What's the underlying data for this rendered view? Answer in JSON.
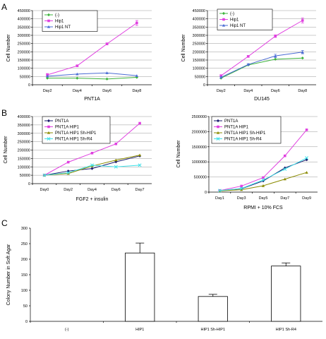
{
  "panels": [
    "A",
    "B",
    "C"
  ],
  "chart_data": [
    {
      "type": "line",
      "ylabel": "Cell Number",
      "xlabel": "PNT1A",
      "categories": [
        "Day2",
        "Day4",
        "Day6",
        "Day8"
      ],
      "ylim": [
        0,
        450000
      ],
      "yticks": [
        "0",
        "50000",
        "100000",
        "150000",
        "200000",
        "250000",
        "300000",
        "350000",
        "400000",
        "450000"
      ],
      "grid": true,
      "legend": "top-left",
      "series": [
        {
          "name": "(-)",
          "color": "#3cb43c",
          "marker": "diamond",
          "values": [
            40000,
            40000,
            35000,
            45000
          ]
        },
        {
          "name": "Hip1",
          "color": "#e040e0",
          "marker": "square",
          "values": [
            60000,
            115000,
            248000,
            375000
          ],
          "err": [
            8000,
            4000,
            6000,
            15000
          ]
        },
        {
          "name": "Hip1 NT",
          "color": "#4a6cd4",
          "marker": "triangle",
          "values": [
            52000,
            65000,
            72000,
            55000
          ]
        }
      ]
    },
    {
      "type": "line",
      "ylabel": "Cell Number",
      "xlabel": "DU145",
      "categories": [
        "Day2",
        "Day4",
        "Day6",
        "Day8"
      ],
      "ylim": [
        0,
        450000
      ],
      "yticks": [
        "0",
        "50000",
        "100000",
        "150000",
        "200000",
        "250000",
        "300000",
        "350000",
        "400000",
        "450000"
      ],
      "grid": true,
      "legend": "top-left",
      "series": [
        {
          "name": "(-)",
          "color": "#3cb43c",
          "marker": "diamond",
          "values": [
            40000,
            120000,
            155000,
            162000
          ]
        },
        {
          "name": "Hip1",
          "color": "#e040e0",
          "marker": "square",
          "values": [
            55000,
            172000,
            295000,
            390000
          ],
          "err": [
            5000,
            5000,
            8000,
            15000
          ]
        },
        {
          "name": "Hip1 NT",
          "color": "#4a6cd4",
          "marker": "triangle",
          "values": [
            45000,
            123000,
            175000,
            198000
          ],
          "err": [
            4000,
            5000,
            10000,
            10000
          ]
        }
      ]
    },
    {
      "type": "line",
      "ylabel": "Cell Number",
      "xlabel": "FGF2 + insulin",
      "categories": [
        "Day0",
        "Day2",
        "Day4",
        "Day6",
        "Day7"
      ],
      "ylim": [
        0,
        400000
      ],
      "yticks": [
        "0",
        "50000",
        "100000",
        "150000",
        "200000",
        "250000",
        "300000",
        "350000",
        "400000"
      ],
      "grid": true,
      "legend": "top-left",
      "series": [
        {
          "name": "PNT1A",
          "color": "#1a1a6e",
          "marker": "diamond",
          "values": [
            50000,
            75000,
            90000,
            130000,
            165000
          ]
        },
        {
          "name": "PNT1A HIP1",
          "color": "#e040e0",
          "marker": "square",
          "values": [
            50000,
            128000,
            182000,
            237000,
            360000
          ]
        },
        {
          "name": "PNT1A HIP1 Sh-HIP1",
          "color": "#8b8b00",
          "marker": "triangle",
          "values": [
            50000,
            60000,
            105000,
            140000,
            170000
          ]
        },
        {
          "name": "PNT1A HIP1 Sh-R4",
          "color": "#40e0e8",
          "marker": "x",
          "values": [
            50000,
            65000,
            110000,
            100000,
            110000
          ]
        }
      ]
    },
    {
      "type": "line",
      "ylabel": "Cell Number",
      "xlabel": "RPMI + 10% FCS",
      "categories": [
        "Day1",
        "Day3",
        "Day5",
        "Day7",
        "Day9"
      ],
      "ylim": [
        0,
        2500000
      ],
      "yticks": [
        "0",
        "500000",
        "1000000",
        "1500000",
        "2000000",
        "2500000"
      ],
      "grid": true,
      "legend": "top-left",
      "series": [
        {
          "name": "PNT1A",
          "color": "#1a1a6e",
          "marker": "diamond",
          "values": [
            50000,
            110000,
            370000,
            800000,
            1070000
          ]
        },
        {
          "name": "PNT1A HIP1",
          "color": "#e040e0",
          "marker": "square",
          "values": [
            50000,
            200000,
            480000,
            1200000,
            2060000
          ]
        },
        {
          "name": "PNT1A HIP1 Sh-HIP1",
          "color": "#8b8b00",
          "marker": "triangle",
          "values": [
            40000,
            80000,
            210000,
            430000,
            650000
          ]
        },
        {
          "name": "PNT1A HIP1 Sh-R4",
          "color": "#40e0e8",
          "marker": "x",
          "values": [
            50000,
            120000,
            400000,
            760000,
            1130000
          ]
        }
      ]
    },
    {
      "type": "bar",
      "ylabel": "Colony Number in Soft Agar",
      "xlabel": "",
      "categories": [
        "(-)",
        "HIP1",
        "HIP1 Sh-HIP1",
        "HIP1 Sh-R4"
      ],
      "values": [
        0,
        220,
        80,
        178
      ],
      "err": [
        0,
        32,
        7,
        10
      ],
      "ylim": [
        0,
        300
      ],
      "yticks": [
        "0",
        "50",
        "100",
        "150",
        "200",
        "250",
        "300"
      ],
      "grid": false
    }
  ]
}
